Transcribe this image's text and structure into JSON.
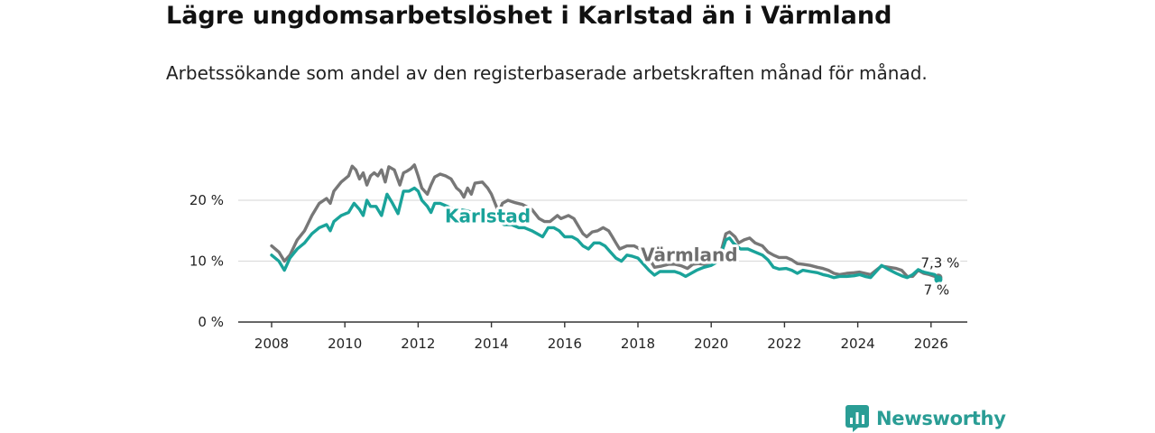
{
  "title": "Lägre ungdomsarbetslöshet i Karlstad än i Värmland",
  "subtitle": "Arbetssökande som andel av den registerbaserade arbetskraften månad för månad.",
  "brand": "Newsworthy",
  "colors": {
    "karlstad": "#1aa39a",
    "varmland": "#777777",
    "grid": "#dddddd",
    "axis": "#333333"
  },
  "chart_data": {
    "type": "line",
    "title": "Lägre ungdomsarbetslöshet i Karlstad än i Värmland",
    "xlabel": "",
    "ylabel": "",
    "xlim": [
      2007.3,
      2027.3
    ],
    "ylim": [
      0,
      22
    ],
    "y_ticks": [
      {
        "value": 0,
        "label": "0 %"
      },
      {
        "value": 10,
        "label": "10 %"
      },
      {
        "value": 20,
        "label": "20 %"
      }
    ],
    "x_ticks": [
      {
        "value": 2008,
        "label": "2008"
      },
      {
        "value": 2010,
        "label": "2010"
      },
      {
        "value": 2012,
        "label": "2012"
      },
      {
        "value": 2014,
        "label": "2014"
      },
      {
        "value": 2016,
        "label": "2016"
      },
      {
        "value": 2018,
        "label": "2018"
      },
      {
        "value": 2020,
        "label": "2020"
      },
      {
        "value": 2022,
        "label": "2022"
      },
      {
        "value": 2024,
        "label": "2024"
      },
      {
        "value": 2026,
        "label": "2026"
      }
    ],
    "series": [
      {
        "name": "Värmland",
        "color": "#777777",
        "label": "Värmland",
        "end_label": "7,3 %",
        "points": [
          [
            2008.0,
            12.5
          ],
          [
            2008.2,
            11.5
          ],
          [
            2008.35,
            10.0
          ],
          [
            2008.5,
            11.0
          ],
          [
            2008.7,
            13.5
          ],
          [
            2008.9,
            15.0
          ],
          [
            2009.1,
            17.5
          ],
          [
            2009.3,
            19.5
          ],
          [
            2009.5,
            20.3
          ],
          [
            2009.6,
            19.5
          ],
          [
            2009.7,
            21.5
          ],
          [
            2009.9,
            23.0
          ],
          [
            2010.1,
            24.0
          ],
          [
            2010.2,
            25.6
          ],
          [
            2010.3,
            25.0
          ],
          [
            2010.4,
            23.5
          ],
          [
            2010.5,
            24.5
          ],
          [
            2010.6,
            22.5
          ],
          [
            2010.7,
            24.0
          ],
          [
            2010.8,
            24.5
          ],
          [
            2010.9,
            24.0
          ],
          [
            2011.0,
            25.0
          ],
          [
            2011.1,
            23.0
          ],
          [
            2011.2,
            25.5
          ],
          [
            2011.35,
            25.0
          ],
          [
            2011.5,
            22.5
          ],
          [
            2011.6,
            24.5
          ],
          [
            2011.7,
            24.8
          ],
          [
            2011.8,
            25.2
          ],
          [
            2011.9,
            25.8
          ],
          [
            2012.0,
            24.0
          ],
          [
            2012.1,
            22.0
          ],
          [
            2012.25,
            21.0
          ],
          [
            2012.35,
            22.5
          ],
          [
            2012.45,
            23.8
          ],
          [
            2012.6,
            24.3
          ],
          [
            2012.75,
            24.0
          ],
          [
            2012.9,
            23.5
          ],
          [
            2013.05,
            22.0
          ],
          [
            2013.15,
            21.5
          ],
          [
            2013.25,
            20.5
          ],
          [
            2013.35,
            22.0
          ],
          [
            2013.45,
            21.0
          ],
          [
            2013.55,
            22.8
          ],
          [
            2013.75,
            23.0
          ],
          [
            2013.9,
            22.0
          ],
          [
            2014.0,
            21.0
          ],
          [
            2014.2,
            18.0
          ],
          [
            2014.3,
            19.5
          ],
          [
            2014.45,
            20.0
          ],
          [
            2014.65,
            19.6
          ],
          [
            2014.85,
            19.3
          ],
          [
            2015.1,
            18.5
          ],
          [
            2015.3,
            17.0
          ],
          [
            2015.45,
            16.5
          ],
          [
            2015.6,
            16.5
          ],
          [
            2015.8,
            17.5
          ],
          [
            2015.9,
            17.0
          ],
          [
            2016.1,
            17.5
          ],
          [
            2016.25,
            17.0
          ],
          [
            2016.4,
            15.5
          ],
          [
            2016.5,
            14.5
          ],
          [
            2016.6,
            14.0
          ],
          [
            2016.75,
            14.8
          ],
          [
            2016.9,
            15.0
          ],
          [
            2017.05,
            15.5
          ],
          [
            2017.2,
            15.0
          ],
          [
            2017.3,
            14.0
          ],
          [
            2017.4,
            13.0
          ],
          [
            2017.5,
            12.0
          ],
          [
            2017.7,
            12.5
          ],
          [
            2017.9,
            12.5
          ],
          [
            2018.05,
            12.0
          ],
          [
            2018.2,
            11.0
          ],
          [
            2018.35,
            10.0
          ],
          [
            2018.45,
            9.0
          ],
          [
            2018.65,
            9.2
          ],
          [
            2018.85,
            9.5
          ],
          [
            2019.0,
            9.5
          ],
          [
            2019.2,
            9.2
          ],
          [
            2019.35,
            8.8
          ],
          [
            2019.5,
            9.5
          ],
          [
            2019.65,
            9.6
          ],
          [
            2019.8,
            9.5
          ],
          [
            2020.0,
            9.8
          ],
          [
            2020.2,
            10.0
          ],
          [
            2020.4,
            14.5
          ],
          [
            2020.5,
            14.8
          ],
          [
            2020.65,
            14.0
          ],
          [
            2020.75,
            13.0
          ],
          [
            2020.9,
            13.5
          ],
          [
            2021.05,
            13.8
          ],
          [
            2021.2,
            13.0
          ],
          [
            2021.4,
            12.5
          ],
          [
            2021.55,
            11.5
          ],
          [
            2021.7,
            11.0
          ],
          [
            2021.85,
            10.6
          ],
          [
            2022.05,
            10.6
          ],
          [
            2022.2,
            10.2
          ],
          [
            2022.35,
            9.6
          ],
          [
            2022.5,
            9.5
          ],
          [
            2022.7,
            9.3
          ],
          [
            2022.9,
            9.0
          ],
          [
            2023.05,
            8.8
          ],
          [
            2023.2,
            8.5
          ],
          [
            2023.35,
            8.0
          ],
          [
            2023.5,
            7.8
          ],
          [
            2023.7,
            8.0
          ],
          [
            2023.9,
            8.1
          ],
          [
            2024.05,
            8.2
          ],
          [
            2024.2,
            8.0
          ],
          [
            2024.35,
            7.8
          ],
          [
            2024.5,
            8.5
          ],
          [
            2024.65,
            9.2
          ],
          [
            2024.85,
            9.0
          ],
          [
            2025.05,
            8.8
          ],
          [
            2025.2,
            8.5
          ],
          [
            2025.35,
            7.5
          ],
          [
            2025.5,
            7.5
          ],
          [
            2025.65,
            8.5
          ],
          [
            2025.8,
            8.0
          ],
          [
            2025.95,
            7.8
          ],
          [
            2026.1,
            7.5
          ],
          [
            2026.2,
            7.3
          ]
        ]
      },
      {
        "name": "Karlstad",
        "color": "#1aa39a",
        "label": "Karlstad",
        "end_label": "7 %",
        "points": [
          [
            2008.0,
            11.0
          ],
          [
            2008.2,
            10.0
          ],
          [
            2008.35,
            8.5
          ],
          [
            2008.5,
            10.5
          ],
          [
            2008.7,
            12.0
          ],
          [
            2008.9,
            13.0
          ],
          [
            2009.1,
            14.5
          ],
          [
            2009.3,
            15.5
          ],
          [
            2009.5,
            16.0
          ],
          [
            2009.6,
            15.0
          ],
          [
            2009.7,
            16.5
          ],
          [
            2009.9,
            17.5
          ],
          [
            2010.1,
            18.0
          ],
          [
            2010.25,
            19.5
          ],
          [
            2010.4,
            18.5
          ],
          [
            2010.5,
            17.5
          ],
          [
            2010.6,
            20.0
          ],
          [
            2010.7,
            19.0
          ],
          [
            2010.85,
            19.0
          ],
          [
            2011.0,
            17.5
          ],
          [
            2011.15,
            21.0
          ],
          [
            2011.3,
            19.5
          ],
          [
            2011.45,
            17.8
          ],
          [
            2011.6,
            21.5
          ],
          [
            2011.75,
            21.5
          ],
          [
            2011.9,
            22.0
          ],
          [
            2012.0,
            21.5
          ],
          [
            2012.1,
            20.0
          ],
          [
            2012.25,
            19.0
          ],
          [
            2012.35,
            18.0
          ],
          [
            2012.45,
            19.5
          ],
          [
            2012.6,
            19.5
          ],
          [
            2012.8,
            19.0
          ],
          [
            2012.95,
            18.5
          ],
          [
            2013.1,
            18.5
          ],
          [
            2013.3,
            18.3
          ],
          [
            2013.5,
            18.0
          ],
          [
            2013.7,
            18.2
          ],
          [
            2013.9,
            18.0
          ],
          [
            2014.05,
            17.5
          ],
          [
            2014.2,
            16.5
          ],
          [
            2014.35,
            16.0
          ],
          [
            2014.55,
            16.0
          ],
          [
            2014.75,
            15.5
          ],
          [
            2014.9,
            15.5
          ],
          [
            2015.1,
            15.0
          ],
          [
            2015.25,
            14.5
          ],
          [
            2015.4,
            14.0
          ],
          [
            2015.55,
            15.5
          ],
          [
            2015.7,
            15.5
          ],
          [
            2015.85,
            15.0
          ],
          [
            2016.0,
            14.0
          ],
          [
            2016.2,
            14.0
          ],
          [
            2016.35,
            13.5
          ],
          [
            2016.5,
            12.5
          ],
          [
            2016.65,
            12.0
          ],
          [
            2016.8,
            13.0
          ],
          [
            2016.95,
            13.0
          ],
          [
            2017.1,
            12.5
          ],
          [
            2017.25,
            11.5
          ],
          [
            2017.4,
            10.5
          ],
          [
            2017.55,
            10.0
          ],
          [
            2017.7,
            11.0
          ],
          [
            2017.85,
            10.8
          ],
          [
            2018.0,
            10.5
          ],
          [
            2018.15,
            9.5
          ],
          [
            2018.3,
            8.5
          ],
          [
            2018.45,
            7.7
          ],
          [
            2018.6,
            8.3
          ],
          [
            2018.8,
            8.3
          ],
          [
            2019.0,
            8.3
          ],
          [
            2019.15,
            8.0
          ],
          [
            2019.3,
            7.5
          ],
          [
            2019.45,
            8.0
          ],
          [
            2019.6,
            8.5
          ],
          [
            2019.8,
            9.0
          ],
          [
            2020.0,
            9.3
          ],
          [
            2020.2,
            10.0
          ],
          [
            2020.4,
            13.5
          ],
          [
            2020.5,
            13.8
          ],
          [
            2020.6,
            13.0
          ],
          [
            2020.8,
            12.0
          ],
          [
            2021.0,
            12.0
          ],
          [
            2021.2,
            11.5
          ],
          [
            2021.4,
            11.0
          ],
          [
            2021.55,
            10.2
          ],
          [
            2021.7,
            9.0
          ],
          [
            2021.85,
            8.7
          ],
          [
            2022.05,
            8.8
          ],
          [
            2022.2,
            8.5
          ],
          [
            2022.35,
            8.0
          ],
          [
            2022.5,
            8.5
          ],
          [
            2022.7,
            8.3
          ],
          [
            2022.9,
            8.1
          ],
          [
            2023.05,
            7.8
          ],
          [
            2023.2,
            7.6
          ],
          [
            2023.35,
            7.3
          ],
          [
            2023.5,
            7.5
          ],
          [
            2023.7,
            7.5
          ],
          [
            2023.9,
            7.6
          ],
          [
            2024.05,
            7.8
          ],
          [
            2024.2,
            7.5
          ],
          [
            2024.35,
            7.3
          ],
          [
            2024.5,
            8.3
          ],
          [
            2024.65,
            9.3
          ],
          [
            2024.85,
            8.6
          ],
          [
            2025.05,
            8.0
          ],
          [
            2025.2,
            7.6
          ],
          [
            2025.35,
            7.3
          ],
          [
            2025.5,
            7.8
          ],
          [
            2025.65,
            8.6
          ],
          [
            2025.8,
            8.2
          ],
          [
            2025.95,
            8.0
          ],
          [
            2026.1,
            7.8
          ],
          [
            2026.2,
            7.0
          ]
        ]
      }
    ]
  }
}
